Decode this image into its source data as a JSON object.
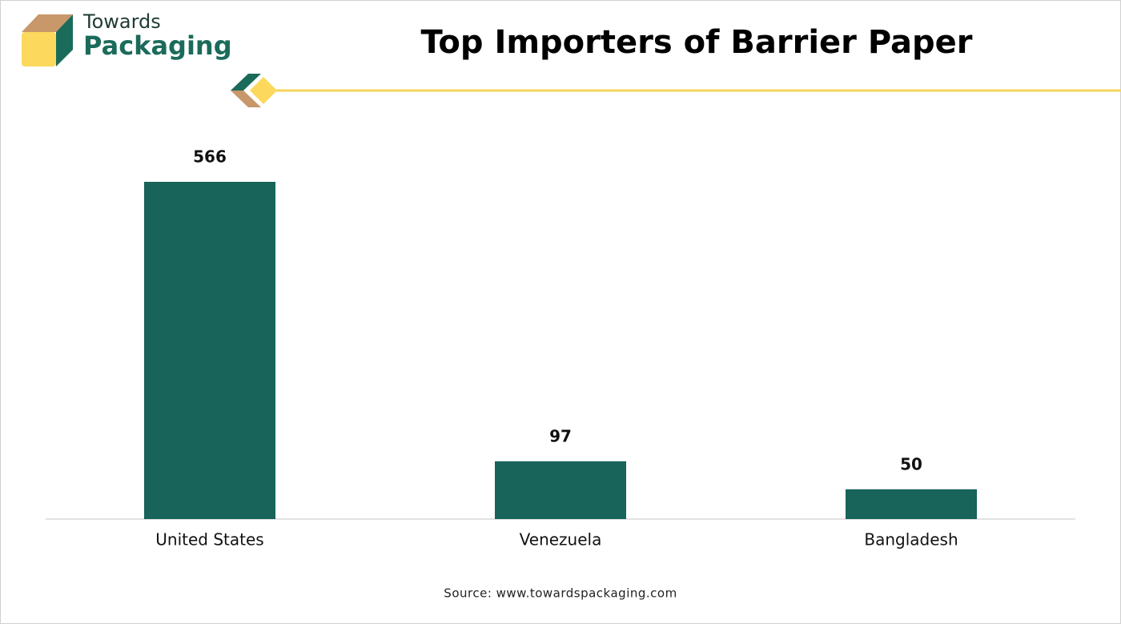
{
  "logo": {
    "line1": "Towards",
    "line2": "Packaging"
  },
  "chart_data": {
    "type": "bar",
    "title": "Top Importers of Barrier Paper",
    "categories": [
      "United States",
      "Venezuela",
      "Bangladesh"
    ],
    "values": [
      566,
      97,
      50
    ],
    "color": "#18635a",
    "source": "Source: www.towardspackaging.com"
  }
}
